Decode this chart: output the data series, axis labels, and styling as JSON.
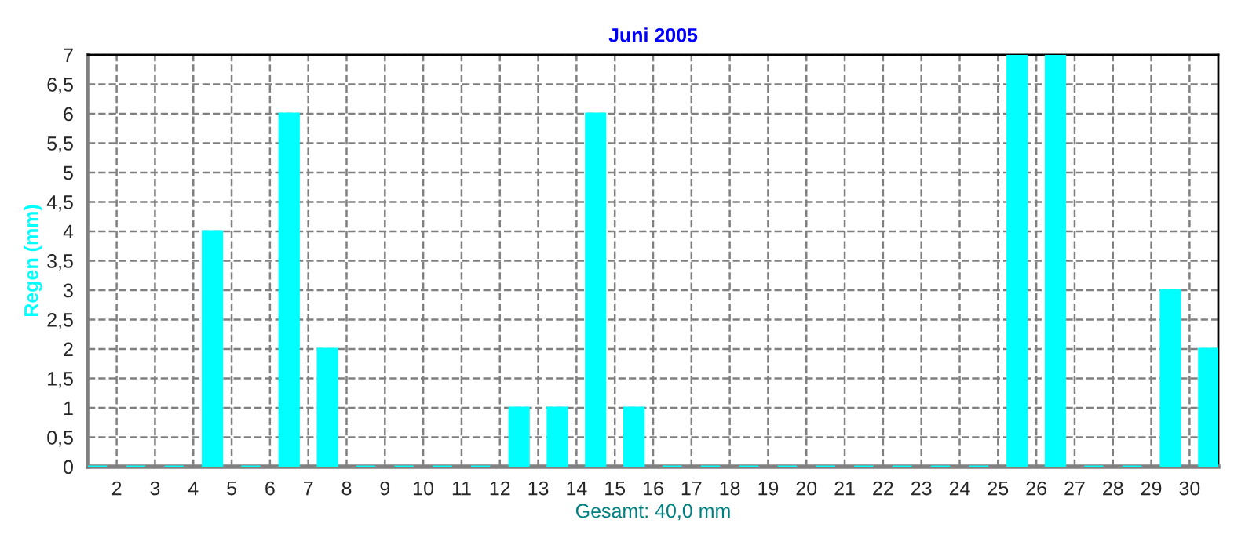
{
  "chart_data": {
    "type": "bar",
    "title": "Juni 2005",
    "xlabel": "Gesamt: 40,0 mm",
    "ylabel": "Regen (mm)",
    "x": [
      1.5,
      2.5,
      3.5,
      4.5,
      5.5,
      6.5,
      7.5,
      8.5,
      9.5,
      10.5,
      11.5,
      12.5,
      13.5,
      14.5,
      15.5,
      16.5,
      17.5,
      18.5,
      19.5,
      20.5,
      21.5,
      22.5,
      23.5,
      24.5,
      25.5,
      26.5,
      27.5,
      28.5,
      29.5,
      30.5
    ],
    "series": [
      {
        "color": "#00ffff",
        "values": [
          0,
          0,
          0,
          4,
          0,
          6,
          2,
          0,
          0,
          0,
          0,
          1,
          1,
          6,
          1,
          0,
          0,
          0,
          0,
          0,
          0,
          0,
          0,
          0,
          7,
          7,
          0,
          0,
          3,
          2
        ]
      }
    ],
    "xlim": [
      1.25,
      30.75
    ],
    "xticks": [
      2,
      3,
      4,
      5,
      6,
      7,
      8,
      9,
      10,
      11,
      12,
      13,
      14,
      15,
      16,
      17,
      18,
      19,
      20,
      21,
      22,
      23,
      24,
      25,
      26,
      27,
      28,
      29,
      30
    ],
    "ylim": [
      0,
      7
    ],
    "yticks": [
      0,
      {
        "value": 0.5,
        "label": "0,5"
      },
      1,
      {
        "value": 1.5,
        "label": "1,5"
      },
      2,
      {
        "value": 2.5,
        "label": "2,5"
      },
      3,
      {
        "value": 3.5,
        "label": "3,5"
      },
      4,
      {
        "value": 4.5,
        "label": "4,5"
      },
      5,
      {
        "value": 5.5,
        "label": "5,5"
      },
      6,
      {
        "value": 6.5,
        "label": "6,5"
      },
      7
    ],
    "grid": true,
    "legend": false
  }
}
